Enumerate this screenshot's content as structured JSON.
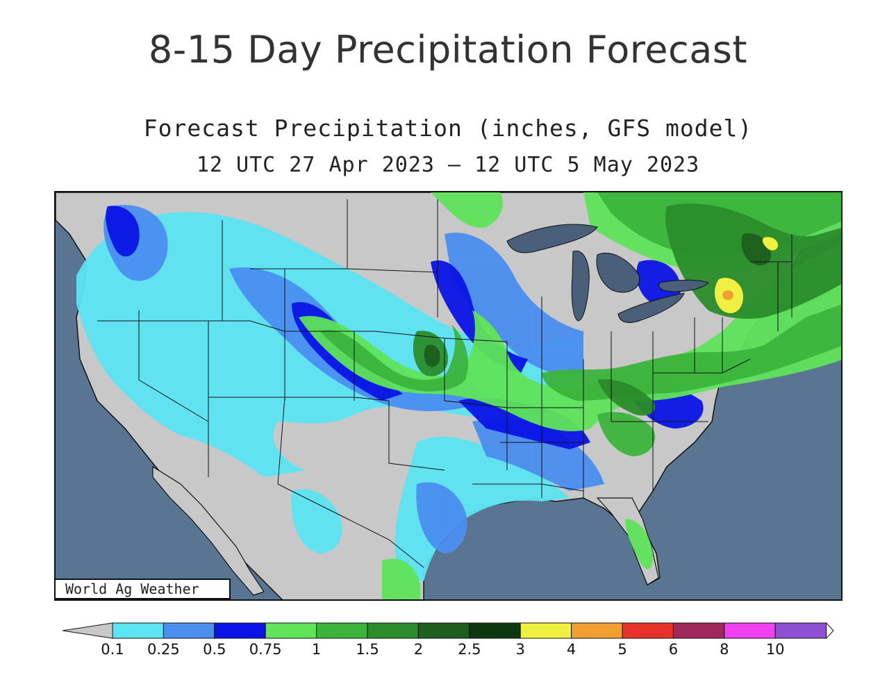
{
  "page_title": "8-15 Day Precipitation Forecast",
  "map": {
    "title": "Forecast Precipitation (inches, GFS model)",
    "subtitle": "12 UTC 27 Apr 2023 – 12 UTC 5 May 2023",
    "credit": "World Ag Weather",
    "ocean_color": "#5a7592",
    "land_color": "#c8c8c8",
    "great_lakes_color": "#4a5f7a"
  },
  "legend": {
    "below_color": "#c8c8c8",
    "above_color": "#ffffff",
    "colors": [
      "#5ce4f2",
      "#4a8ef0",
      "#0a14e6",
      "#5fe45a",
      "#3cb43c",
      "#2a8c2a",
      "#1e5e1e",
      "#0c3810",
      "#f0f040",
      "#f0a030",
      "#e63228",
      "#a0285a",
      "#f040f0",
      "#8c50d2"
    ],
    "labels": [
      "0.1",
      "0.25",
      "0.5",
      "0.75",
      "1",
      "1.5",
      "2",
      "2.5",
      "3",
      "4",
      "5",
      "6",
      "8",
      "10"
    ]
  }
}
